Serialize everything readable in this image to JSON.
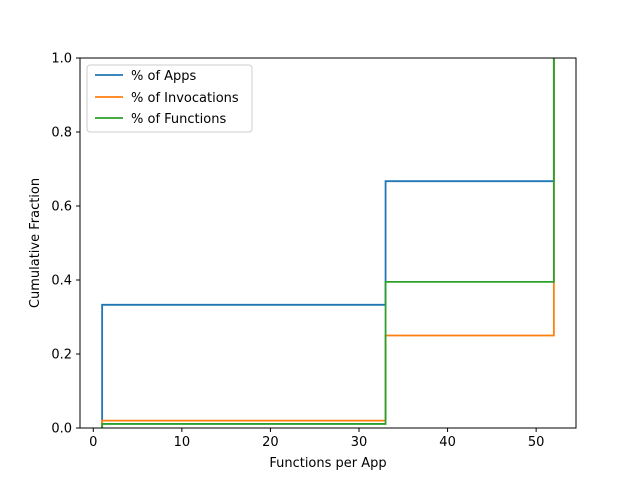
{
  "chart_data": {
    "type": "line",
    "title": "",
    "xlabel": "Functions per App",
    "ylabel": "Cumulative Fraction",
    "xlim": [
      -1.5,
      54.5
    ],
    "ylim": [
      0,
      1.0
    ],
    "xticks": [
      0,
      10,
      20,
      30,
      40,
      50
    ],
    "yticks": [
      0.0,
      0.2,
      0.4,
      0.6,
      0.8,
      1.0
    ],
    "xtick_labels": [
      "0",
      "10",
      "20",
      "30",
      "40",
      "50"
    ],
    "ytick_labels": [
      "0.0",
      "0.2",
      "0.4",
      "0.6",
      "0.8",
      "1.0"
    ],
    "grid": false,
    "legend_position": "top-left",
    "step": "post",
    "series": [
      {
        "name": "% of Apps",
        "color": "#1f77b4",
        "x": [
          1,
          1,
          33,
          33,
          52,
          52
        ],
        "y": [
          0.0,
          0.333,
          0.333,
          0.667,
          0.667,
          1.0
        ]
      },
      {
        "name": "% of Invocations",
        "color": "#ff7f0e",
        "x": [
          1,
          1,
          33,
          33,
          52,
          52
        ],
        "y": [
          0.0,
          0.02,
          0.02,
          0.25,
          0.25,
          1.0
        ]
      },
      {
        "name": "% of Functions",
        "color": "#2ca02c",
        "x": [
          1,
          1,
          33,
          33,
          52,
          52
        ],
        "y": [
          0.0,
          0.011,
          0.011,
          0.395,
          0.395,
          1.0
        ]
      }
    ]
  }
}
